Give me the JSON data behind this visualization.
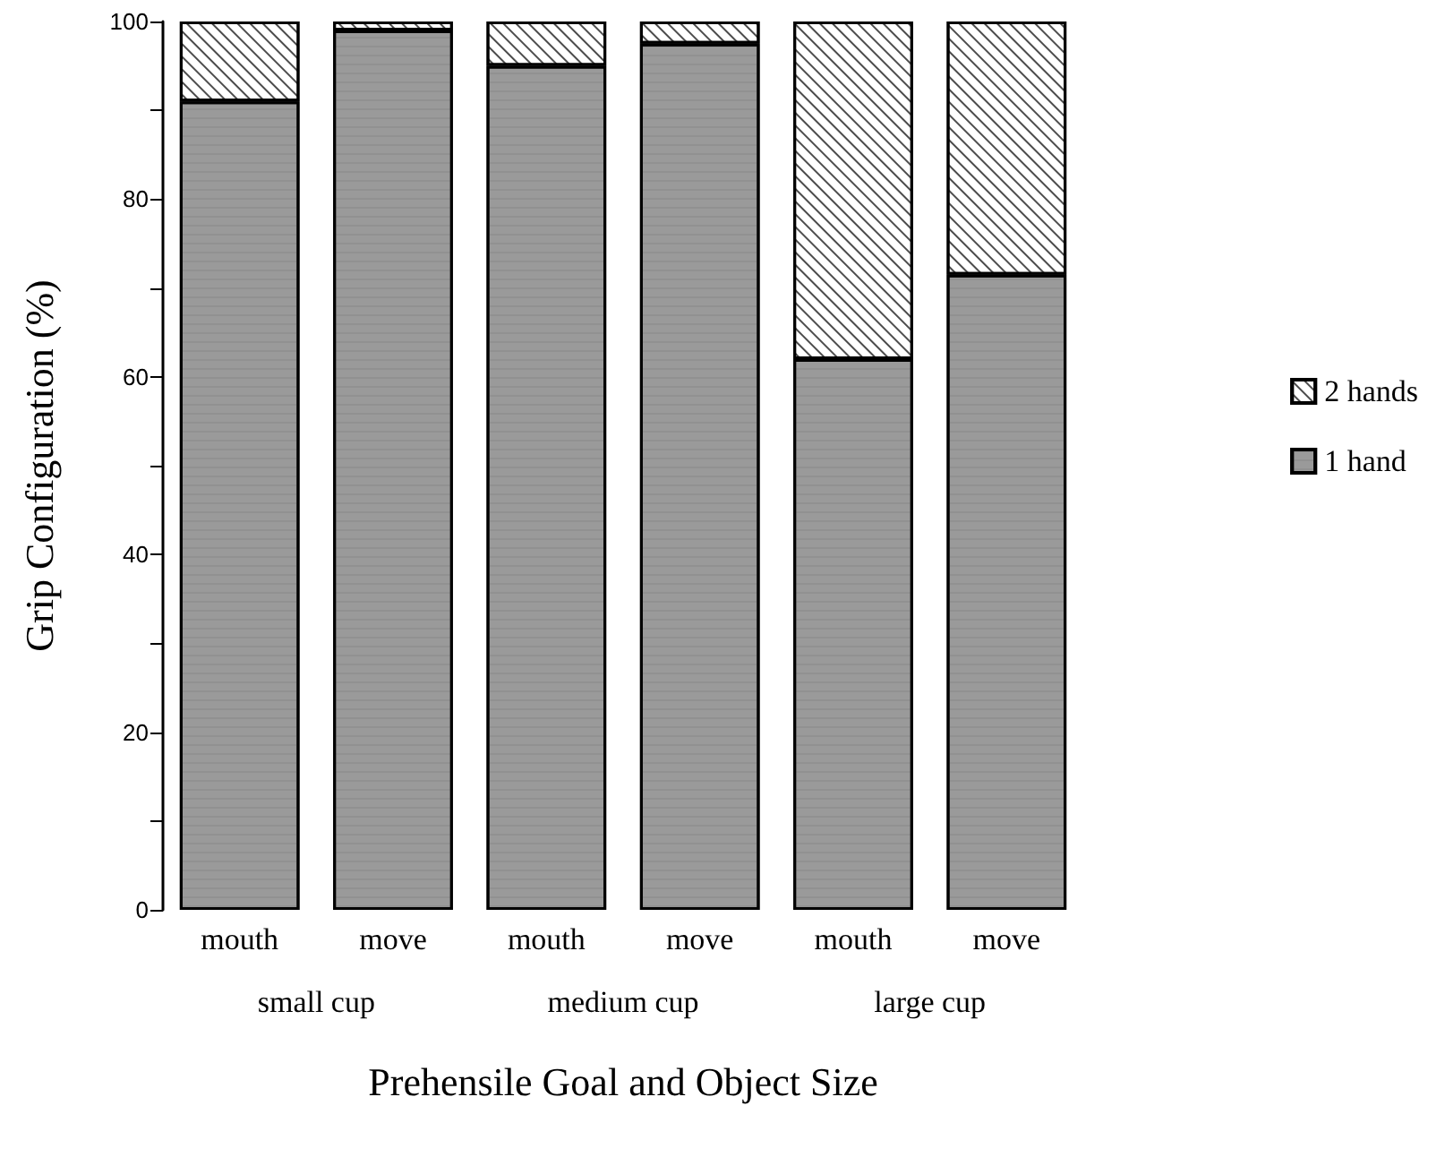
{
  "chart_data": {
    "type": "bar",
    "stacked": true,
    "xlabel": "Prehensile Goal and Object Size",
    "ylabel": "Grip Configuration (%)",
    "categories": [
      "mouth",
      "move",
      "mouth",
      "move",
      "mouth",
      "move"
    ],
    "annotations": [
      "small cup",
      "medium cup",
      "large cup"
    ],
    "series": [
      {
        "name": "1 hand",
        "color": "#9a9a9a",
        "values": [
          91,
          99,
          95,
          97.5,
          62,
          71.5
        ]
      },
      {
        "name": "2 hands",
        "color": "#ffffff",
        "values": [
          9,
          1,
          5,
          2.5,
          38,
          28.5
        ]
      }
    ],
    "ylim": [
      0,
      100
    ],
    "yticks": [
      0,
      {
        "value": 10,
        "label": null
      },
      20,
      {
        "value": 30,
        "label": null
      },
      40,
      {
        "value": 50,
        "label": null
      },
      60,
      {
        "value": 70,
        "label": null
      },
      80,
      {
        "value": 90,
        "label": null
      },
      100
    ],
    "grid": false,
    "legend": "right"
  }
}
